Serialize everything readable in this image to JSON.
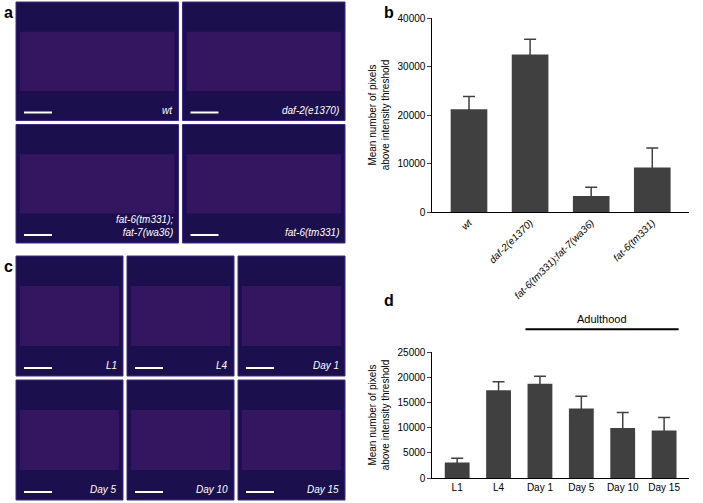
{
  "image_panels": [
    {
      "letter": "a",
      "labels": [
        "wt",
        "daf-2(e1370)",
        "fat-6(tm331);\nfat-7(wa36)",
        "fat-6(tm331)"
      ]
    },
    {
      "letter": "c",
      "labels": [
        "L1",
        "L4",
        "Day 1",
        "Day 5",
        "Day 10",
        "Day 15"
      ]
    }
  ],
  "chart_data": [
    {
      "type": "bar",
      "title": "b",
      "ylabel": "Mean number of pixels\nabove intensity threshold",
      "categories": [
        "wt",
        "daf-2(e1370)",
        "fat-6(tm331);fat-7(wa36)",
        "fat-6(tm331)"
      ],
      "values": [
        21200,
        32500,
        3300,
        9200
      ],
      "errors": [
        2600,
        3100,
        1800,
        4000
      ],
      "color": "#404040",
      "ylim": [
        0,
        40000
      ],
      "yticks": [
        0,
        10000,
        20000,
        30000,
        40000
      ],
      "grid": false
    },
    {
      "type": "bar",
      "title": "d",
      "ylabel": "Mean number of pixels\nabove intensity threshold",
      "categories": [
        "L1",
        "L4",
        "Day 1",
        "Day 5",
        "Day 10",
        "Day 15"
      ],
      "values": [
        3100,
        17400,
        18700,
        13800,
        9900,
        9400
      ],
      "errors": [
        800,
        1700,
        1500,
        2400,
        3100,
        2600
      ],
      "color": "#404040",
      "ylim": [
        0,
        25000
      ],
      "yticks": [
        0,
        5000,
        10000,
        15000,
        20000,
        25000
      ],
      "grid": false,
      "annotations": [
        {
          "text": "Adulthood",
          "from": "Day 1",
          "to": "Day 15"
        }
      ]
    }
  ]
}
